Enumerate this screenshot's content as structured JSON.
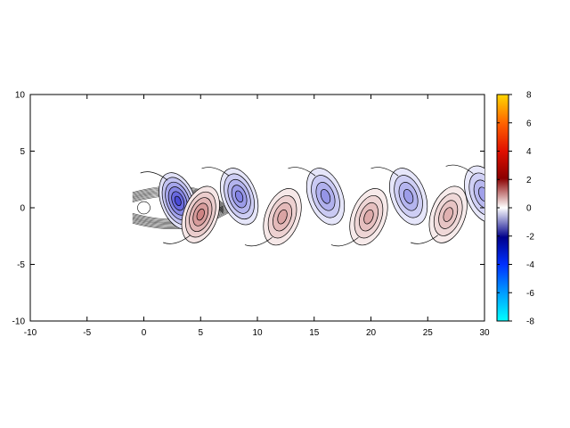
{
  "chart_data": {
    "type": "heatmap",
    "title": "",
    "xlabel": "",
    "ylabel": "",
    "xlim": [
      -10,
      30
    ],
    "ylim": [
      -10,
      10
    ],
    "x_ticks": [
      "-10",
      "-5",
      "0",
      "5",
      "10",
      "15",
      "20",
      "25",
      "30"
    ],
    "y_ticks": [
      "10",
      "5",
      "0",
      "-5",
      "-10"
    ],
    "grid": false,
    "colorbar": {
      "range": [
        -8,
        8
      ],
      "ticks": [
        "8",
        "6",
        "4",
        "2",
        "0",
        "-2",
        "-4",
        "-6",
        "-8"
      ],
      "colors": [
        "#00ffff",
        "#0040ff",
        "#00008b",
        "#ffffff",
        "#8b0000",
        "#ff4000",
        "#ffd700"
      ]
    },
    "field": "vorticity contours (von Karman vortex street)",
    "vortices": [
      {
        "x": 3.0,
        "y": 0.6,
        "sign": "negative",
        "peak": -3.0
      },
      {
        "x": 5.0,
        "y": -0.6,
        "sign": "positive",
        "peak": 2.2
      },
      {
        "x": 8.4,
        "y": 1.0,
        "sign": "negative",
        "peak": -1.6
      },
      {
        "x": 12.2,
        "y": -0.8,
        "sign": "positive",
        "peak": 1.2
      },
      {
        "x": 16.0,
        "y": 1.0,
        "sign": "negative",
        "peak": -1.1
      },
      {
        "x": 19.8,
        "y": -0.8,
        "sign": "positive",
        "peak": 1.0
      },
      {
        "x": 23.3,
        "y": 1.0,
        "sign": "negative",
        "peak": -0.9
      },
      {
        "x": 26.8,
        "y": -0.6,
        "sign": "positive",
        "peak": 0.8
      },
      {
        "x": 29.9,
        "y": 1.2,
        "sign": "negative",
        "peak": -0.8
      }
    ]
  }
}
